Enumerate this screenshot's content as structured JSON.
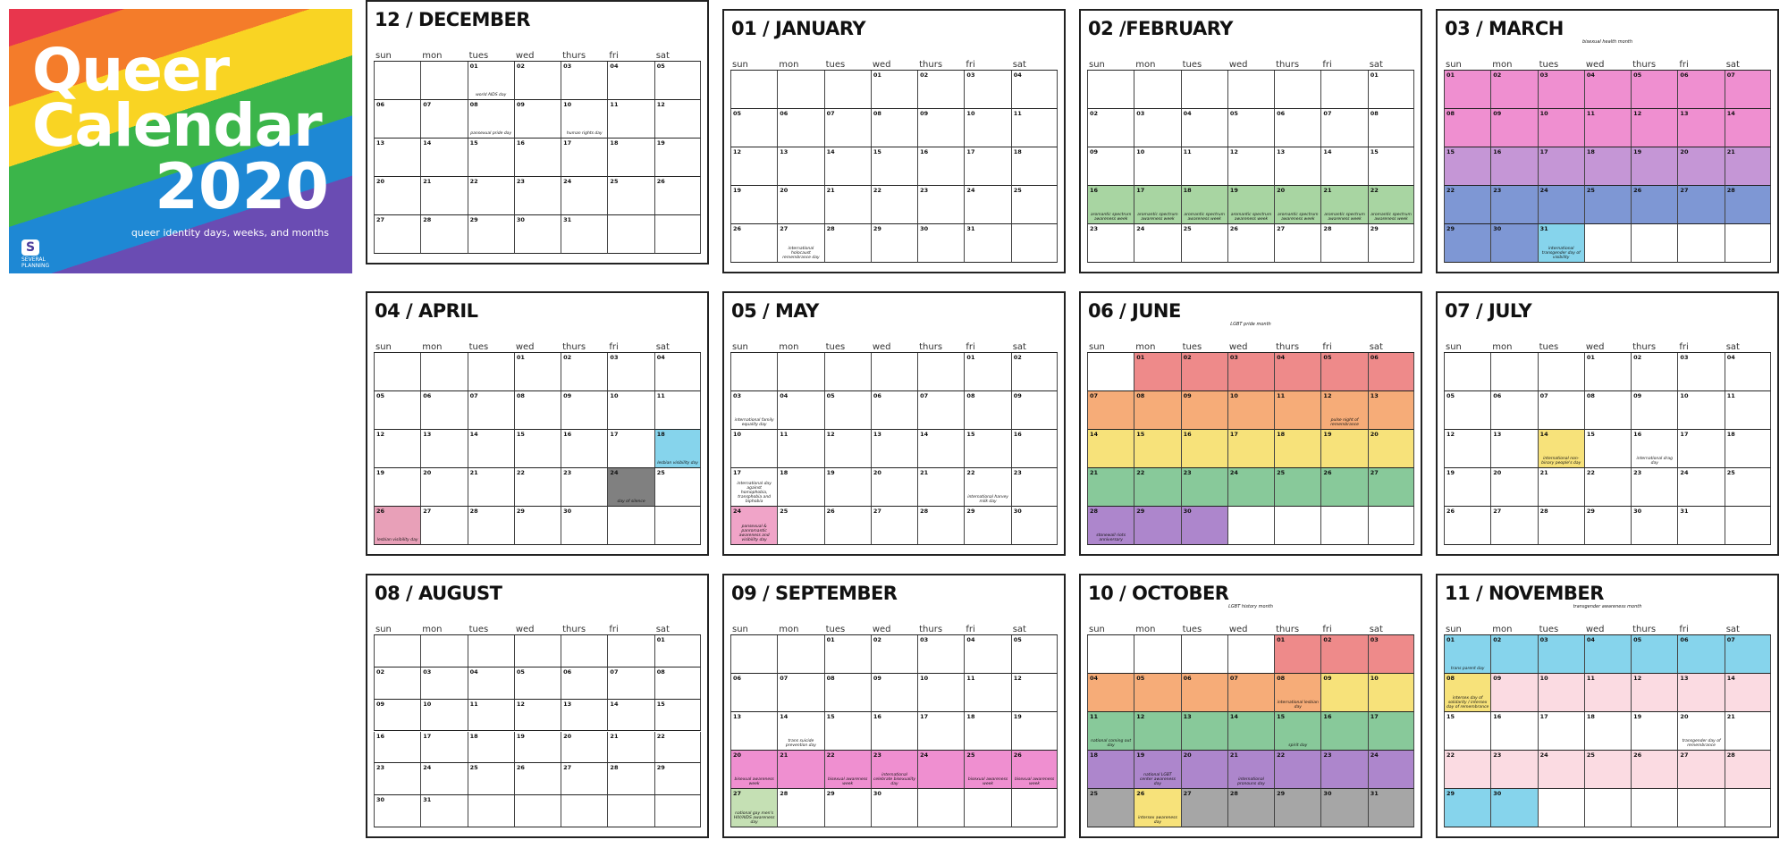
{
  "cover": {
    "title_line1": "Queer",
    "title_line2": "Calendar",
    "year": "2020",
    "subtitle": "queer identity days, weeks, and months",
    "logo_mark": "S",
    "logo_text": "SEVERAL PLANNING"
  },
  "weekdays": [
    "sun",
    "mon",
    "tues",
    "wed",
    "thurs",
    "fri",
    "sat"
  ],
  "months": [
    {
      "title": "01 / JANUARY",
      "subtitle": "",
      "start": 3,
      "days": 31,
      "rows": 5,
      "notes": {
        "27": "international holocaust remembrance day"
      },
      "colors": {}
    },
    {
      "title": "02 /FEBRUARY",
      "subtitle": "",
      "start": 6,
      "days": 29,
      "rows": 5,
      "notes": {
        "16": "aromantic spectrum awareness week",
        "17": "aromantic spectrum awareness week",
        "18": "aromantic spectrum awareness week",
        "19": "aromantic spectrum awareness week",
        "20": "aromantic spectrum awareness week",
        "21": "aromantic spectrum awareness week",
        "22": "aromantic spectrum awareness week"
      },
      "colors": {
        "16": "#a8d5a2",
        "17": "#a8d5a2",
        "18": "#a8d5a2",
        "19": "#a8d5a2",
        "20": "#a8d5a2",
        "21": "#a8d5a2",
        "22": "#a8d5a2"
      }
    },
    {
      "title": "03 / MARCH",
      "subtitle": "bisexual health month",
      "start": 0,
      "days": 31,
      "rows": 5,
      "notes": {
        "31": "international transgender day of visibility"
      },
      "colors": {
        "1": "#ef8fd0",
        "2": "#ef8fd0",
        "3": "#ef8fd0",
        "4": "#ef8fd0",
        "5": "#ef8fd0",
        "6": "#ef8fd0",
        "7": "#ef8fd0",
        "8": "#ef8fd0",
        "9": "#ef8fd0",
        "10": "#ef8fd0",
        "11": "#ef8fd0",
        "12": "#ef8fd0",
        "13": "#ef8fd0",
        "14": "#ef8fd0",
        "15": "#c596d6",
        "16": "#c596d6",
        "17": "#c596d6",
        "18": "#c596d6",
        "19": "#c596d6",
        "20": "#c596d6",
        "21": "#c596d6",
        "22": "#7e97d4",
        "23": "#7e97d4",
        "24": "#7e97d4",
        "25": "#7e97d4",
        "26": "#7e97d4",
        "27": "#7e97d4",
        "28": "#7e97d4",
        "29": "#7e97d4",
        "30": "#7e97d4",
        "31": "#86d4ec"
      }
    },
    {
      "title": "04 / APRIL",
      "subtitle": "",
      "start": 3,
      "days": 30,
      "rows": 5,
      "notes": {
        "18": "lesbian visibility day",
        "24": "day of silence",
        "26": "lesbian visibility day"
      },
      "colors": {
        "18": "#86d4ec",
        "24": "#808080",
        "26": "#e8a0b8"
      }
    },
    {
      "title": "05 / MAY",
      "subtitle": "",
      "start": 5,
      "days": 31,
      "rows": 5,
      "notes": {
        "3": "international family equality day",
        "17": "international day against homophobia, transphobia and biphobia",
        "22": "international harvey milk day",
        "24": "pansexual & panromantic awareness and visibility day"
      },
      "colors": {
        "24": "#f0a4c8"
      }
    },
    {
      "title": "06 / JUNE",
      "subtitle": "LGBT pride month",
      "start": 1,
      "days": 30,
      "rows": 5,
      "notes": {
        "12": "pulse night of remembrance",
        "28": "stonewall riots anniversary"
      },
      "colors": {
        "1": "#ee8a8a",
        "2": "#ee8a8a",
        "3": "#ee8a8a",
        "4": "#ee8a8a",
        "5": "#ee8a8a",
        "6": "#ee8a8a",
        "7": "#f6ac78",
        "8": "#f6ac78",
        "9": "#f6ac78",
        "10": "#f6ac78",
        "11": "#f6ac78",
        "12": "#f6ac78",
        "13": "#f6ac78",
        "14": "#f7e27a",
        "15": "#f7e27a",
        "16": "#f7e27a",
        "17": "#f7e27a",
        "18": "#f7e27a",
        "19": "#f7e27a",
        "20": "#f7e27a",
        "21": "#88c99a",
        "22": "#88c99a",
        "23": "#88c99a",
        "24": "#88c99a",
        "25": "#88c99a",
        "26": "#88c99a",
        "27": "#88c99a",
        "28": "#ad86cc",
        "29": "#ad86cc",
        "30": "#ad86cc"
      }
    },
    {
      "title": "07 / JULY",
      "subtitle": "",
      "start": 3,
      "days": 31,
      "rows": 5,
      "notes": {
        "14": "international non-binary people's day",
        "16": "international drag day"
      },
      "colors": {
        "14": "#f7e27a"
      }
    },
    {
      "title": "08 / AUGUST",
      "subtitle": "",
      "start": 6,
      "days": 31,
      "rows": 6,
      "notes": {},
      "colors": {}
    },
    {
      "title": "09 / SEPTEMBER",
      "subtitle": "",
      "start": 2,
      "days": 30,
      "rows": 5,
      "notes": {
        "14": "trans suicide prevention day",
        "23": "international celebrate bisexuality day",
        "20": "bisexual awareness week",
        "22": "bisexual awareness week",
        "25": "bisexual awareness week",
        "26": "bisexual awareness week",
        "27": "national gay men's HIV/AIDS awareness day"
      },
      "colors": {
        "20": "#ef8fd0",
        "21": "#ef8fd0",
        "22": "#ef8fd0",
        "23": "#ef8fd0",
        "24": "#ef8fd0",
        "25": "#ef8fd0",
        "26": "#ef8fd0",
        "27": "#c5e0b4"
      }
    },
    {
      "title": "10 / OCTOBER",
      "subtitle": "LGBT history month",
      "start": 4,
      "days": 31,
      "rows": 5,
      "notes": {
        "8": "international lesbian day",
        "11": "national coming out day",
        "15": "spirit day",
        "19": "national LGBT center awareness day",
        "21": "international pronouns day",
        "26": "intersex awareness day"
      },
      "colors": {
        "1": "#ee8a8a",
        "2": "#ee8a8a",
        "3": "#ee8a8a",
        "4": "#f6ac78",
        "5": "#f6ac78",
        "6": "#f6ac78",
        "7": "#f6ac78",
        "8": "#f6ac78",
        "9": "#f7e27a",
        "10": "#f7e27a",
        "11": "#88c99a",
        "12": "#88c99a",
        "13": "#88c99a",
        "14": "#88c99a",
        "15": "#88c99a",
        "16": "#88c99a",
        "17": "#88c99a",
        "18": "#ad86cc",
        "19": "#ad86cc",
        "20": "#ad86cc",
        "21": "#ad86cc",
        "22": "#ad86cc",
        "23": "#ad86cc",
        "24": "#ad86cc",
        "25": "#a6a6a6",
        "26": "#f7e27a",
        "27": "#a6a6a6",
        "28": "#a6a6a6",
        "29": "#a6a6a6",
        "30": "#a6a6a6",
        "31": "#a6a6a6"
      }
    },
    {
      "title": "11 / NOVEMBER",
      "subtitle": "transgender awareness month",
      "start": 0,
      "days": 30,
      "rows": 5,
      "notes": {
        "1": "trans parent day",
        "8": "intersex day of solidarity / intersex day of remembrance",
        "20": "transgender day of remembrance"
      },
      "colors": {
        "1": "#86d4ec",
        "2": "#86d4ec",
        "3": "#86d4ec",
        "4": "#86d4ec",
        "5": "#86d4ec",
        "6": "#86d4ec",
        "7": "#86d4ec",
        "8": "#f7e27a",
        "9": "#fbdbe2",
        "10": "#fbdbe2",
        "11": "#fbdbe2",
        "12": "#fbdbe2",
        "13": "#fbdbe2",
        "14": "#fbdbe2",
        "22": "#fbdbe2",
        "23": "#fbdbe2",
        "24": "#fbdbe2",
        "25": "#fbdbe2",
        "26": "#fbdbe2",
        "27": "#fbdbe2",
        "28": "#fbdbe2",
        "29": "#86d4ec",
        "30": "#86d4ec"
      }
    },
    {
      "title": "12 / DECEMBER",
      "subtitle": "",
      "start": 2,
      "days": 31,
      "rows": 5,
      "notes": {
        "1": "world AIDS day",
        "8": "pansexual pride day",
        "10": "human rights day"
      },
      "colors": {}
    }
  ],
  "chart_data": {
    "type": "table",
    "title": "Queer Calendar 2020"
  }
}
